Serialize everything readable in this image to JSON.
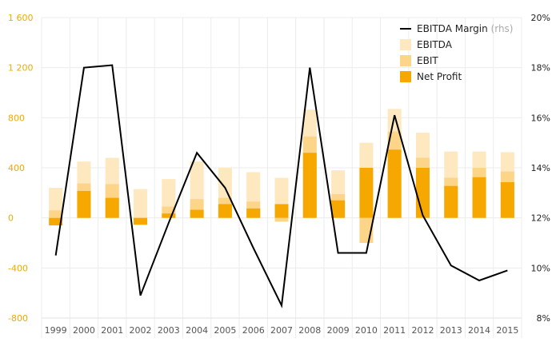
{
  "chart_data": {
    "type": "bar",
    "categories": [
      "1999",
      "2000",
      "2001",
      "2002",
      "2003",
      "2004",
      "2005",
      "2006",
      "2007",
      "2008",
      "2009",
      "2010",
      "2011",
      "2012",
      "2013",
      "2014",
      "2015"
    ],
    "series": [
      {
        "name": "EBITDA",
        "type": "bar",
        "color": "#fde8c0",
        "values": [
          240,
          450,
          480,
          230,
          310,
          450,
          400,
          365,
          320,
          865,
          380,
          600,
          870,
          680,
          530,
          530,
          525
        ]
      },
      {
        "name": "EBIT",
        "type": "bar",
        "color": "#fdd589",
        "values": [
          60,
          275,
          270,
          -50,
          90,
          150,
          160,
          130,
          -30,
          650,
          190,
          -200,
          690,
          480,
          320,
          400,
          370
        ]
      },
      {
        "name": "Net Profit",
        "type": "bar",
        "color": "#f7a800",
        "values": [
          -60,
          215,
          160,
          -55,
          35,
          65,
          110,
          75,
          110,
          520,
          140,
          400,
          545,
          400,
          255,
          325,
          285
        ]
      },
      {
        "name": "EBITDA Margin",
        "type": "line",
        "axis": "right",
        "color": "#000000",
        "values": [
          10.5,
          18.0,
          18.1,
          8.9,
          11.8,
          14.6,
          13.2,
          10.8,
          8.5,
          18.0,
          10.6,
          10.6,
          16.1,
          12.1,
          10.1,
          9.5,
          9.9
        ]
      }
    ],
    "y_left": {
      "ylim": [
        -800,
        1600
      ],
      "ticks": [
        -800,
        -400,
        0,
        400,
        800,
        1200,
        1600
      ],
      "tick_labels": [
        "-800",
        "-400",
        "0",
        "400",
        "800",
        "1 200",
        "1 600"
      ],
      "tick_color": "#f5a800"
    },
    "y_right": {
      "ylim": [
        8,
        20
      ],
      "ticks": [
        8,
        10,
        12,
        14,
        16,
        18,
        20
      ],
      "tick_labels": [
        "8%",
        "10%",
        "12%",
        "14%",
        "16%",
        "18%",
        "20%"
      ]
    },
    "grid": true,
    "legend": {
      "position": "top-right",
      "items": [
        {
          "label": "EBITDA Margin",
          "sublabel": "(rhs)",
          "marker": "line",
          "color": "#000000"
        },
        {
          "label": "EBITDA",
          "marker": "box",
          "color": "#fde8c0"
        },
        {
          "label": "EBIT",
          "marker": "box",
          "color": "#fdd589"
        },
        {
          "label": "Net Profit",
          "marker": "box",
          "color": "#f7a800"
        }
      ]
    }
  }
}
